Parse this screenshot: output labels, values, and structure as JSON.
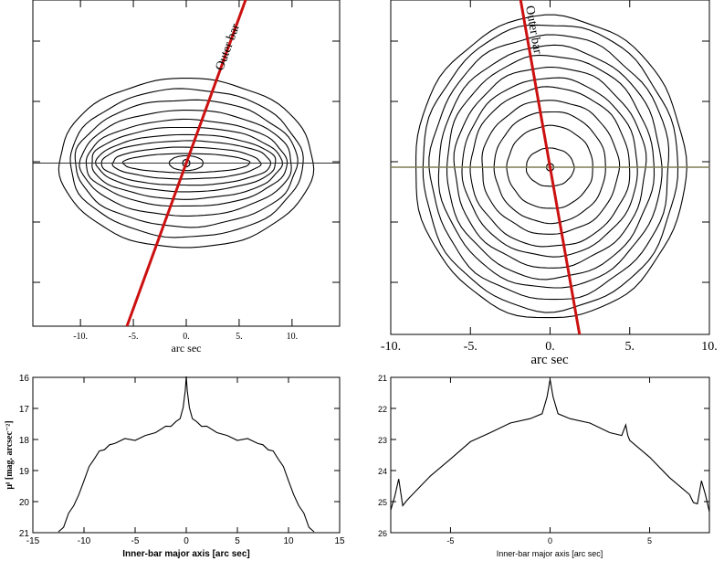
{
  "chart_data": [
    {
      "id": "contours_left",
      "type": "contour",
      "xlabel": "arc sec",
      "xticks": [
        -10,
        -5,
        0,
        5,
        10
      ],
      "xtick_labels": [
        "-10.",
        "-5.",
        "0.",
        "5.",
        "10."
      ],
      "xlim": [
        -14.5,
        14.5
      ],
      "ylim": [
        -13.5,
        13.5
      ],
      "annotation": "Outer bar",
      "outer_bar_angle_deg_from_vertical": 20,
      "horizontal_line": "inner-bar major axis",
      "contour_semi_axes": [
        [
          12,
          8
        ],
        [
          11,
          7
        ],
        [
          10.5,
          6
        ],
        [
          10,
          5
        ],
        [
          9.5,
          4.1
        ],
        [
          9,
          3.4
        ],
        [
          8.5,
          2.7
        ],
        [
          8,
          2.1
        ],
        [
          7,
          1.5
        ],
        [
          6,
          0.9
        ],
        [
          1.6,
          0.7
        ]
      ],
      "colors": {
        "bar_line": "#cc1111",
        "contour": "#000000",
        "axis_line": "#2f2f2f"
      }
    },
    {
      "id": "contours_right",
      "type": "contour",
      "xlabel": "arc sec",
      "xticks": [
        -10,
        -5,
        0,
        5,
        10
      ],
      "xtick_labels": [
        "-10.",
        "-5.",
        "0.",
        "5.",
        "10."
      ],
      "xlim": [
        -10,
        10
      ],
      "ylim": [
        -13,
        13
      ],
      "annotation": "Outer bar",
      "outer_bar_angle_deg_from_vertical": 10,
      "horizontal_line": "inner-bar major axis",
      "contour_semi_axes": [
        [
          8.5,
          9.5
        ],
        [
          8,
          9
        ],
        [
          7.5,
          8.3
        ],
        [
          7,
          7.6
        ],
        [
          6.5,
          7
        ],
        [
          6,
          6.3
        ],
        [
          5.5,
          5.6
        ],
        [
          5,
          5
        ],
        [
          4.3,
          4.2
        ],
        [
          3.5,
          3.5
        ],
        [
          2.7,
          2.6
        ],
        [
          1.5,
          1.2
        ]
      ],
      "colors": {
        "bar_line": "#cc1111",
        "contour": "#000000",
        "axis_line": "#7f7f55"
      }
    },
    {
      "id": "profile_left",
      "type": "line",
      "xlabel": "Inner-bar major axis [arc sec]",
      "ylabel": "μᴵ [mag. arcsec⁻²]",
      "xlim": [
        -15,
        15
      ],
      "ylim": [
        21,
        16
      ],
      "y_inverted": true,
      "xticks": [
        -15,
        -10,
        -5,
        0,
        5,
        10,
        15
      ],
      "yticks": [
        16,
        17,
        18,
        19,
        20,
        21
      ],
      "x": [
        -12.5,
        -12,
        -11.5,
        -11,
        -10.5,
        -10,
        -9.5,
        -9,
        -8.5,
        -8,
        -7.5,
        -7,
        -6,
        -5,
        -4,
        -3,
        -2,
        -1.5,
        -1,
        -0.6,
        -0.3,
        -0.1,
        0,
        0.1,
        0.3,
        0.6,
        1,
        1.5,
        2,
        3,
        4,
        5,
        6,
        7,
        7.5,
        8,
        8.5,
        9,
        9.5,
        10,
        10.5,
        11,
        11.5,
        12,
        12.5
      ],
      "values": [
        21,
        20.8,
        20.4,
        20.1,
        19.8,
        19.3,
        18.9,
        18.6,
        18.4,
        18.3,
        18.2,
        18.1,
        18.0,
        18.0,
        17.9,
        17.75,
        17.6,
        17.55,
        17.45,
        17.3,
        17.0,
        16.4,
        16.0,
        16.4,
        17.0,
        17.3,
        17.45,
        17.55,
        17.6,
        17.75,
        17.9,
        18.0,
        18.0,
        18.1,
        18.2,
        18.3,
        18.4,
        18.6,
        18.9,
        19.3,
        19.8,
        20.1,
        20.4,
        20.8,
        21
      ]
    },
    {
      "id": "profile_right",
      "type": "line",
      "xlabel": "Inner-bar major axis [arc sec]",
      "ylabel": "",
      "xlim": [
        -8,
        8
      ],
      "ylim": [
        26,
        21
      ],
      "y_inverted": true,
      "xticks": [
        -5,
        0,
        5
      ],
      "yticks": [
        21,
        22,
        23,
        24,
        25,
        26
      ],
      "x": [
        -8,
        -7.8,
        -7.6,
        -7.4,
        -7.2,
        -7,
        -6,
        -5,
        -4,
        -3,
        -2,
        -1,
        -0.4,
        -0.15,
        0,
        0.15,
        0.4,
        1,
        2,
        3,
        3.6,
        3.8,
        3.9,
        4,
        5,
        6,
        7,
        7.2,
        7.4,
        7.6,
        7.8,
        8
      ],
      "values": [
        25.3,
        24.8,
        24.3,
        25.1,
        25.0,
        24.8,
        24.2,
        23.6,
        23.1,
        22.75,
        22.5,
        22.3,
        22.2,
        21.6,
        21.1,
        21.6,
        22.2,
        22.3,
        22.5,
        22.75,
        22.9,
        22.5,
        22.9,
        23.0,
        23.6,
        24.2,
        24.8,
        25.0,
        25.1,
        24.3,
        24.8,
        25.3
      ]
    }
  ]
}
